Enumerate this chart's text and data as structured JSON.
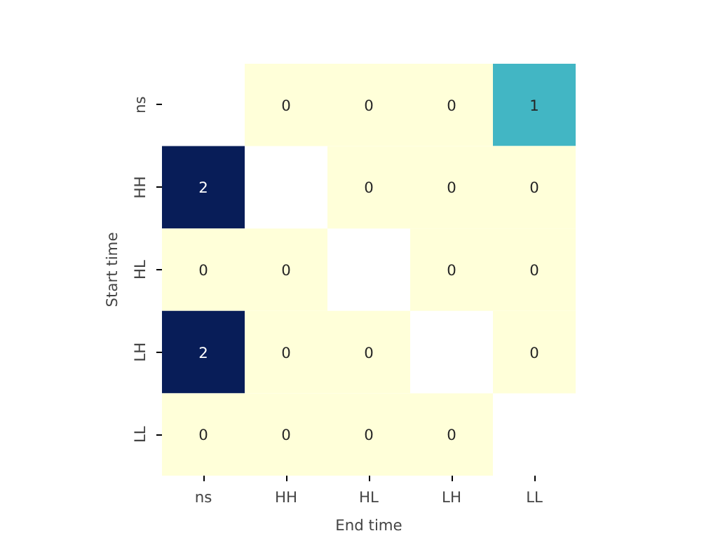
{
  "chart_data": {
    "type": "heatmap",
    "xlabel": "End time",
    "ylabel": "Start time",
    "categories": [
      "ns",
      "HH",
      "HL",
      "LH",
      "LL"
    ],
    "y_categories": [
      "ns",
      "HH",
      "HL",
      "LH",
      "LL"
    ],
    "cells": [
      [
        null,
        0,
        0,
        0,
        1
      ],
      [
        2,
        null,
        0,
        0,
        0
      ],
      [
        0,
        0,
        null,
        0,
        0
      ],
      [
        2,
        0,
        0,
        null,
        0
      ],
      [
        0,
        0,
        0,
        0,
        null
      ]
    ],
    "data_labels": true
  }
}
